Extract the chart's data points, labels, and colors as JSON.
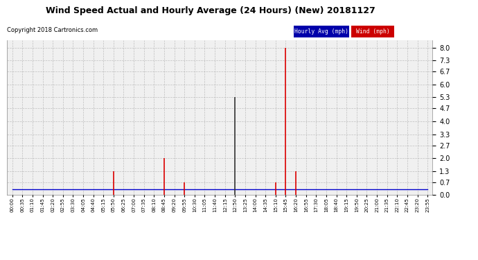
{
  "title": "Wind Speed Actual and Hourly Average (24 Hours) (New) 20181127",
  "copyright": "Copyright 2018 Cartronics.com",
  "legend_labels": [
    "Hourly Avg (mph)",
    "Wind (mph)"
  ],
  "legend_bg_colors": [
    "#0000aa",
    "#cc0000"
  ],
  "legend_text_colors": [
    "#ffffff",
    "#ffffff"
  ],
  "ytick_values": [
    0.0,
    0.7,
    1.3,
    2.0,
    2.7,
    3.3,
    4.0,
    4.7,
    5.3,
    6.0,
    6.7,
    7.3,
    8.0
  ],
  "ylim": [
    0.0,
    8.4
  ],
  "background_color": "#ffffff",
  "plot_bg_color": "#f0f0f0",
  "grid_color": "#aaaaaa",
  "wind_color": "#dd0000",
  "hourly_color": "#0000cc",
  "dark_spike_color": "#333333",
  "time_labels": [
    "00:00",
    "00:35",
    "01:10",
    "01:45",
    "02:20",
    "02:55",
    "03:30",
    "04:05",
    "04:40",
    "05:15",
    "05:50",
    "06:25",
    "07:00",
    "07:35",
    "08:10",
    "08:45",
    "09:20",
    "09:55",
    "10:30",
    "11:05",
    "11:40",
    "12:15",
    "12:50",
    "13:25",
    "14:00",
    "14:35",
    "15:10",
    "15:45",
    "16:20",
    "16:55",
    "17:30",
    "18:05",
    "18:40",
    "19:15",
    "19:50",
    "20:25",
    "21:00",
    "21:35",
    "22:10",
    "22:45",
    "23:20",
    "23:55"
  ],
  "wind_actual": [
    0.0,
    0.0,
    0.0,
    0.0,
    0.0,
    0.0,
    0.0,
    0.0,
    0.0,
    0.0,
    1.3,
    0.0,
    0.0,
    0.0,
    0.0,
    2.0,
    0.0,
    0.7,
    0.0,
    0.0,
    0.0,
    0.0,
    0.0,
    0.0,
    0.0,
    0.0,
    0.7,
    8.0,
    1.3,
    0.0,
    0.0,
    0.0,
    0.0,
    0.0,
    0.0,
    0.0,
    0.0,
    0.0,
    0.0,
    0.0,
    0.0,
    0.0
  ],
  "dark_spike_actual": [
    0.0,
    0.0,
    0.0,
    0.0,
    0.0,
    0.0,
    0.0,
    0.0,
    0.0,
    0.0,
    0.0,
    0.0,
    0.0,
    0.0,
    0.0,
    0.0,
    0.0,
    0.0,
    0.0,
    0.0,
    0.0,
    0.0,
    5.3,
    0.0,
    0.0,
    0.0,
    0.0,
    0.0,
    0.0,
    0.0,
    0.0,
    0.0,
    0.0,
    0.0,
    0.0,
    0.0,
    0.0,
    0.0,
    0.0,
    0.0,
    0.0,
    0.0
  ],
  "hourly_avg": [
    0.3,
    0.3,
    0.3,
    0.3,
    0.3,
    0.3,
    0.3,
    0.3,
    0.3,
    0.3,
    0.3,
    0.3,
    0.3,
    0.3,
    0.3,
    0.3,
    0.3,
    0.3,
    0.3,
    0.3,
    0.3,
    0.3,
    0.3,
    0.3,
    0.3,
    0.3,
    0.3,
    0.3,
    0.3,
    0.3,
    0.3,
    0.3,
    0.3,
    0.3,
    0.3,
    0.3,
    0.3,
    0.3,
    0.3,
    0.3,
    0.3,
    0.3
  ]
}
